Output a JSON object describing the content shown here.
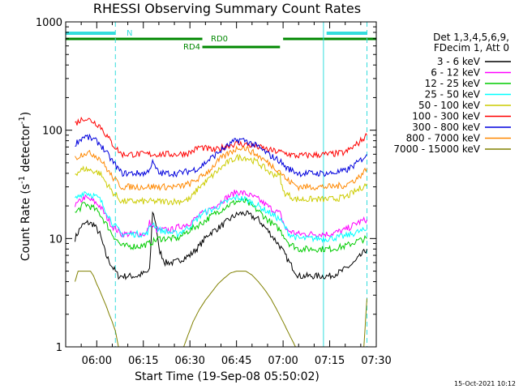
{
  "chart_data": {
    "type": "line",
    "title": "RHESSI Observing Summary Count Rates",
    "xlabel": "Start Time (19-Sep-08 05:50:02)",
    "ylabel": "Count Rate (s⁻¹ detector⁻¹)",
    "ylabel_main": "Count Rate (s",
    "ylabel_sup1": "-1",
    "ylabel_mid": " detector",
    "ylabel_sup2": "-1",
    "ylabel_end": ")",
    "x_units": "minutes",
    "x_range": [
      "05:50",
      "07:30"
    ],
    "xticks": [
      "06:00",
      "06:15",
      "06:30",
      "06:45",
      "07:00",
      "07:15",
      "07:30"
    ],
    "y_scale": "log",
    "ylim": [
      1,
      1000
    ],
    "yticks": [
      "1",
      "10",
      "100",
      "1000"
    ],
    "legend": {
      "position": "right",
      "header": [
        "Det 1,3,4,5,6,9,",
        "FDecim 1, Att 0"
      ]
    },
    "timestamp": "15-Oct-2021 10:12",
    "flags": [
      {
        "label": "N",
        "segments": [
          [
            "05:50",
            "06:06"
          ],
          [
            "07:14",
            "07:27"
          ]
        ],
        "color": "#33dddd"
      },
      {
        "label": "RD0",
        "segments": [
          [
            "05:50",
            "06:34"
          ],
          [
            "07:00",
            "07:30"
          ]
        ],
        "color": "#008800"
      },
      {
        "label": "RD4",
        "segments": [
          [
            "06:34",
            "06:59"
          ]
        ],
        "color": "#008800"
      }
    ],
    "vlines": [
      {
        "time": "05:50",
        "style": "solid",
        "color": "#33dddd"
      },
      {
        "time": "06:06",
        "style": "dashed",
        "color": "#33dddd"
      },
      {
        "time": "07:13",
        "style": "solid",
        "color": "#33dddd"
      },
      {
        "time": "07:27",
        "style": "dashed",
        "color": "#33dddd"
      }
    ],
    "series": [
      {
        "name": "3 - 6 keV",
        "color": "#000000",
        "points": [
          [
            "05:53",
            10
          ],
          [
            "05:55",
            13
          ],
          [
            "05:57",
            14
          ],
          [
            "05:59",
            13.5
          ],
          [
            "06:01",
            11
          ],
          [
            "06:03",
            7
          ],
          [
            "06:05",
            5.5
          ],
          [
            "06:07",
            4.5
          ],
          [
            "06:13",
            4.5
          ],
          [
            "06:17",
            5
          ],
          [
            "06:18",
            18
          ],
          [
            "06:19",
            14
          ],
          [
            "06:20",
            8
          ],
          [
            "06:22",
            6
          ],
          [
            "06:25",
            6
          ],
          [
            "06:30",
            7
          ],
          [
            "06:33",
            8.5
          ],
          [
            "06:36",
            11
          ],
          [
            "06:40",
            13
          ],
          [
            "06:44",
            16
          ],
          [
            "06:46",
            17
          ],
          [
            "06:48",
            17
          ],
          [
            "06:52",
            15
          ],
          [
            "06:56",
            11
          ],
          [
            "06:59",
            8.5
          ],
          [
            "07:02",
            6
          ],
          [
            "07:05",
            4.5
          ],
          [
            "07:15",
            4.5
          ],
          [
            "07:19",
            5
          ],
          [
            "07:23",
            6
          ],
          [
            "07:27",
            8
          ]
        ]
      },
      {
        "name": "6 - 12 keV",
        "color": "#ff00ff",
        "points": [
          [
            "05:53",
            20
          ],
          [
            "05:56",
            24
          ],
          [
            "05:59",
            22
          ],
          [
            "06:01",
            20
          ],
          [
            "06:05",
            13
          ],
          [
            "06:08",
            11
          ],
          [
            "06:12",
            11
          ],
          [
            "06:16",
            11
          ],
          [
            "06:17",
            14
          ],
          [
            "06:19",
            12
          ],
          [
            "06:24",
            12
          ],
          [
            "06:30",
            14
          ],
          [
            "06:34",
            17
          ],
          [
            "06:38",
            20
          ],
          [
            "06:42",
            24
          ],
          [
            "06:45",
            27
          ],
          [
            "06:48",
            26
          ],
          [
            "06:52",
            23
          ],
          [
            "06:56",
            19
          ],
          [
            "06:59",
            17
          ],
          [
            "07:01",
            12
          ],
          [
            "07:05",
            11
          ],
          [
            "07:15",
            11
          ],
          [
            "07:20",
            12
          ],
          [
            "07:24",
            14
          ],
          [
            "07:27",
            15
          ]
        ]
      },
      {
        "name": "12 - 25 keV",
        "color": "#00cc00",
        "points": [
          [
            "05:53",
            17
          ],
          [
            "05:56",
            21
          ],
          [
            "05:59",
            19
          ],
          [
            "06:01",
            17
          ],
          [
            "06:05",
            11
          ],
          [
            "06:08",
            8.5
          ],
          [
            "06:14",
            8.5
          ],
          [
            "06:17",
            9
          ],
          [
            "06:20",
            10
          ],
          [
            "06:26",
            10
          ],
          [
            "06:30",
            12
          ],
          [
            "06:34",
            14
          ],
          [
            "06:38",
            17
          ],
          [
            "06:42",
            20
          ],
          [
            "06:45",
            22
          ],
          [
            "06:48",
            22
          ],
          [
            "06:52",
            18
          ],
          [
            "06:56",
            14
          ],
          [
            "06:59",
            12
          ],
          [
            "07:02",
            9
          ],
          [
            "07:05",
            8
          ],
          [
            "07:15",
            8
          ],
          [
            "07:20",
            8.5
          ],
          [
            "07:24",
            9.5
          ],
          [
            "07:27",
            10
          ]
        ]
      },
      {
        "name": "25 - 50 keV",
        "color": "#00ffff",
        "points": [
          [
            "05:53",
            23
          ],
          [
            "05:56",
            27
          ],
          [
            "05:59",
            25
          ],
          [
            "06:01",
            23
          ],
          [
            "06:05",
            14
          ],
          [
            "06:08",
            11
          ],
          [
            "06:12",
            11
          ],
          [
            "06:16",
            11
          ],
          [
            "06:18",
            14
          ],
          [
            "06:20",
            12
          ],
          [
            "06:26",
            11
          ],
          [
            "06:30",
            13
          ],
          [
            "06:34",
            17
          ],
          [
            "06:38",
            19
          ],
          [
            "06:42",
            22
          ],
          [
            "06:45",
            24
          ],
          [
            "06:48",
            23
          ],
          [
            "06:52",
            20
          ],
          [
            "06:56",
            17
          ],
          [
            "06:59",
            15
          ],
          [
            "07:02",
            11
          ],
          [
            "07:05",
            10
          ],
          [
            "07:15",
            10
          ],
          [
            "07:20",
            10.5
          ],
          [
            "07:24",
            11.5
          ],
          [
            "07:27",
            12
          ]
        ]
      },
      {
        "name": "50 - 100 keV",
        "color": "#cccc00",
        "points": [
          [
            "05:53",
            40
          ],
          [
            "05:56",
            44
          ],
          [
            "05:59",
            42
          ],
          [
            "06:01",
            40
          ],
          [
            "06:05",
            27
          ],
          [
            "06:08",
            22
          ],
          [
            "06:15",
            22
          ],
          [
            "06:20",
            22
          ],
          [
            "06:26",
            22
          ],
          [
            "06:30",
            23
          ],
          [
            "06:33",
            30
          ],
          [
            "06:35",
            33
          ],
          [
            "06:38",
            40
          ],
          [
            "06:42",
            50
          ],
          [
            "06:45",
            56
          ],
          [
            "06:48",
            56
          ],
          [
            "06:52",
            50
          ],
          [
            "06:56",
            40
          ],
          [
            "06:59",
            38
          ],
          [
            "07:00",
            27
          ],
          [
            "07:04",
            23
          ],
          [
            "07:15",
            23
          ],
          [
            "07:20",
            24
          ],
          [
            "07:24",
            28
          ],
          [
            "07:27",
            32
          ]
        ]
      },
      {
        "name": "100 - 300 keV",
        "color": "#ff0000",
        "points": [
          [
            "05:53",
            115
          ],
          [
            "05:56",
            130
          ],
          [
            "05:59",
            120
          ],
          [
            "06:01",
            110
          ],
          [
            "06:05",
            75
          ],
          [
            "06:08",
            60
          ],
          [
            "06:16",
            60
          ],
          [
            "06:20",
            60
          ],
          [
            "06:26",
            60
          ],
          [
            "06:30",
            62
          ],
          [
            "06:33",
            70
          ],
          [
            "06:38",
            65
          ],
          [
            "06:42",
            72
          ],
          [
            "06:45",
            75
          ],
          [
            "06:48",
            74
          ],
          [
            "06:52",
            70
          ],
          [
            "06:56",
            65
          ],
          [
            "06:59",
            63
          ],
          [
            "07:00",
            62
          ],
          [
            "07:04",
            58
          ],
          [
            "07:15",
            60
          ],
          [
            "07:20",
            62
          ],
          [
            "07:24",
            75
          ],
          [
            "07:27",
            90
          ]
        ]
      },
      {
        "name": "300 - 800 keV",
        "color": "#0000dd",
        "points": [
          [
            "05:53",
            75
          ],
          [
            "05:56",
            88
          ],
          [
            "05:59",
            82
          ],
          [
            "06:01",
            75
          ],
          [
            "06:05",
            52
          ],
          [
            "06:08",
            40
          ],
          [
            "06:16",
            40
          ],
          [
            "06:18",
            50
          ],
          [
            "06:20",
            40
          ],
          [
            "06:26",
            40
          ],
          [
            "06:30",
            42
          ],
          [
            "06:33",
            45
          ],
          [
            "06:36",
            53
          ],
          [
            "06:40",
            65
          ],
          [
            "06:44",
            78
          ],
          [
            "06:46",
            82
          ],
          [
            "06:48",
            80
          ],
          [
            "06:52",
            70
          ],
          [
            "06:56",
            58
          ],
          [
            "06:59",
            52
          ],
          [
            "07:01",
            45
          ],
          [
            "07:05",
            40
          ],
          [
            "07:15",
            40
          ],
          [
            "07:20",
            42
          ],
          [
            "07:24",
            50
          ],
          [
            "07:27",
            60
          ]
        ]
      },
      {
        "name": "800 - 7000 keV",
        "color": "#ff8800",
        "points": [
          [
            "05:53",
            55
          ],
          [
            "05:56",
            62
          ],
          [
            "05:59",
            60
          ],
          [
            "06:01",
            55
          ],
          [
            "06:05",
            37
          ],
          [
            "06:08",
            30
          ],
          [
            "06:16",
            30
          ],
          [
            "06:20",
            30
          ],
          [
            "06:26",
            30
          ],
          [
            "06:30",
            32
          ],
          [
            "06:33",
            36
          ],
          [
            "06:36",
            42
          ],
          [
            "06:40",
            55
          ],
          [
            "06:44",
            65
          ],
          [
            "06:46",
            70
          ],
          [
            "06:48",
            68
          ],
          [
            "06:52",
            58
          ],
          [
            "06:56",
            48
          ],
          [
            "06:59",
            42
          ],
          [
            "07:01",
            35
          ],
          [
            "07:05",
            30
          ],
          [
            "07:15",
            30
          ],
          [
            "07:20",
            31
          ],
          [
            "07:24",
            36
          ],
          [
            "07:27",
            44
          ]
        ]
      },
      {
        "name": "7000 - 15000 keV",
        "color": "#808000",
        "points": [
          [
            "05:53",
            4
          ],
          [
            "05:54",
            5
          ],
          [
            "05:58",
            5
          ],
          [
            "05:59",
            4.5
          ],
          [
            "06:00",
            3.8
          ],
          [
            "06:01",
            3.3
          ],
          [
            "06:02",
            2.8
          ],
          [
            "06:03",
            2.4
          ],
          [
            "06:04",
            2.0
          ],
          [
            "06:05",
            1.7
          ],
          [
            "06:06",
            1.4
          ],
          [
            "06:07",
            1.0
          ],
          [
            "06:28",
            1.0
          ],
          [
            "06:29",
            1.2
          ],
          [
            "06:31",
            1.7
          ],
          [
            "06:33",
            2.2
          ],
          [
            "06:35",
            2.7
          ],
          [
            "06:37",
            3.2
          ],
          [
            "06:39",
            3.8
          ],
          [
            "06:41",
            4.3
          ],
          [
            "06:43",
            4.8
          ],
          [
            "06:45",
            5.0
          ],
          [
            "06:48",
            5.0
          ],
          [
            "06:50",
            4.6
          ],
          [
            "06:52",
            4.0
          ],
          [
            "06:54",
            3.4
          ],
          [
            "06:56",
            2.8
          ],
          [
            "06:58",
            2.2
          ],
          [
            "07:00",
            1.7
          ],
          [
            "07:02",
            1.3
          ],
          [
            "07:04",
            1.0
          ],
          [
            "07:26",
            1.0
          ],
          [
            "07:27",
            2.8
          ]
        ]
      }
    ]
  }
}
